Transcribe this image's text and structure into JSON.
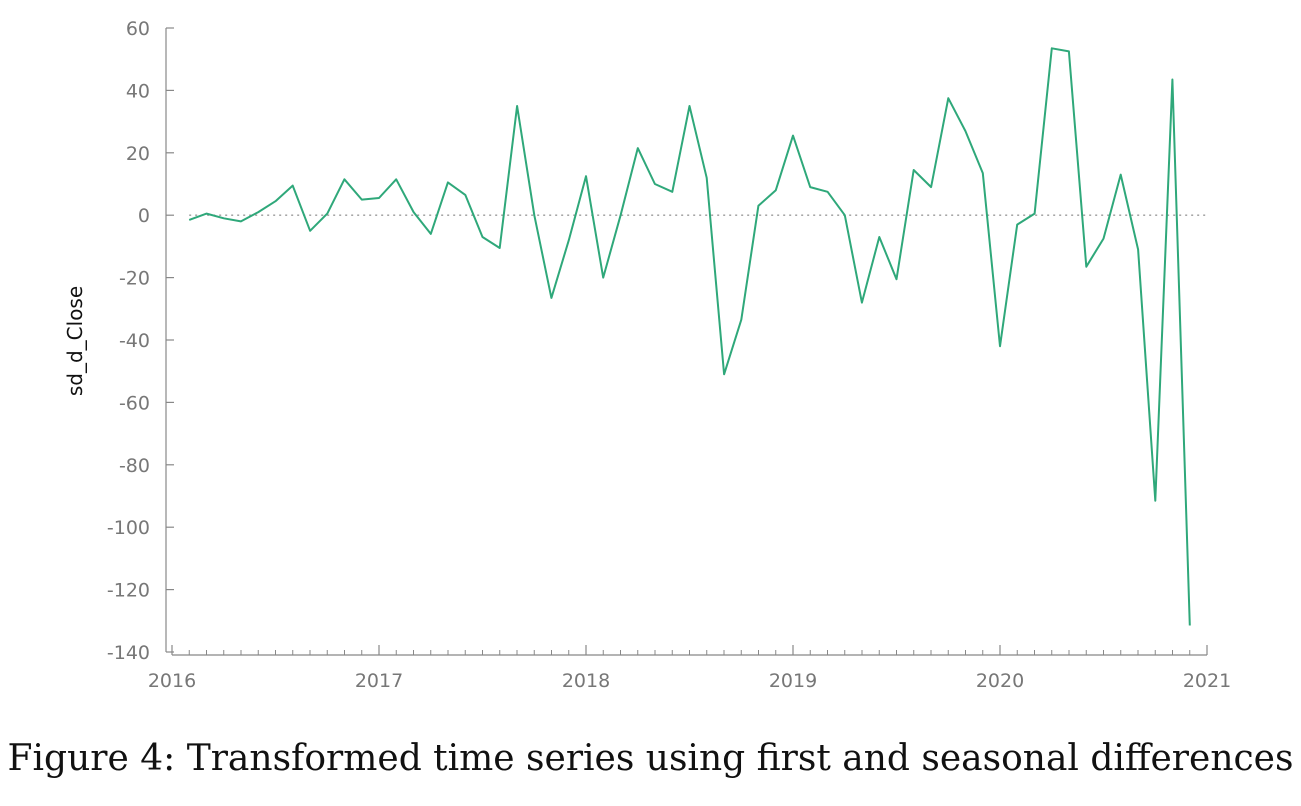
{
  "figure": {
    "caption": "Figure 4: Transformed time series using first and seasonal differences"
  },
  "colors": {
    "series": "#2fa87a",
    "axis": "#888888",
    "zero_line": "#999999"
  },
  "chart_data": {
    "type": "line",
    "title": "",
    "xlabel": "",
    "ylabel": "sd_d_Close",
    "xlim": [
      2016,
      2021
    ],
    "ylim": [
      -140,
      60
    ],
    "x_ticks": [
      "2016",
      "2017",
      "2018",
      "2019",
      "2020",
      "2021"
    ],
    "y_ticks": [
      "60",
      "40",
      "20",
      "0",
      "-20",
      "-40",
      "-60",
      "-80",
      "-100",
      "-120",
      "-140"
    ],
    "y_tick_values": [
      60,
      40,
      20,
      0,
      -20,
      -40,
      -60,
      -80,
      -100,
      -120,
      -140
    ],
    "x_tick_values": [
      2016,
      2017,
      2018,
      2019,
      2020,
      2021
    ],
    "reference_line": {
      "y": 0,
      "style": "dotted"
    },
    "grid": false,
    "legend": "none",
    "series": [
      {
        "x": [
          2016.083,
          2016.167,
          2016.25,
          2016.333,
          2016.417,
          2016.5,
          2016.583,
          2016.667,
          2016.75,
          2016.833,
          2016.917,
          2017.0,
          2017.083,
          2017.167,
          2017.25,
          2017.333,
          2017.417,
          2017.5,
          2017.583,
          2017.667,
          2017.75,
          2017.833,
          2017.917,
          2018.0,
          2018.083,
          2018.167,
          2018.25,
          2018.333,
          2018.417,
          2018.5,
          2018.583,
          2018.667,
          2018.75,
          2018.833,
          2018.917,
          2019.0,
          2019.083,
          2019.167,
          2019.25,
          2019.333,
          2019.417,
          2019.5,
          2019.583,
          2019.667,
          2019.75,
          2019.833,
          2019.917,
          2020.0,
          2020.083,
          2020.167,
          2020.25,
          2020.333,
          2020.417,
          2020.5,
          2020.583,
          2020.667,
          2020.75,
          2020.833,
          2020.917
        ],
        "values": [
          -1.5,
          0.5,
          -1,
          -2,
          1,
          4.5,
          9.5,
          -5,
          0.5,
          11.5,
          5,
          5.5,
          11.5,
          1,
          -6,
          10.5,
          6.5,
          -7,
          -10.5,
          35,
          0,
          -26.5,
          -8,
          12.5,
          -20,
          0,
          21.5,
          10,
          7.5,
          35,
          12,
          -51,
          -33.5,
          3,
          8,
          25.5,
          9,
          7.5,
          0,
          -28,
          -7,
          -20.5,
          14.5,
          9,
          37.5,
          27,
          13.5,
          -42,
          -3,
          0.5,
          53.5,
          52.5,
          -16.5,
          -7.5,
          13,
          -11,
          -91.5,
          43.5,
          -131.5
        ]
      }
    ]
  }
}
